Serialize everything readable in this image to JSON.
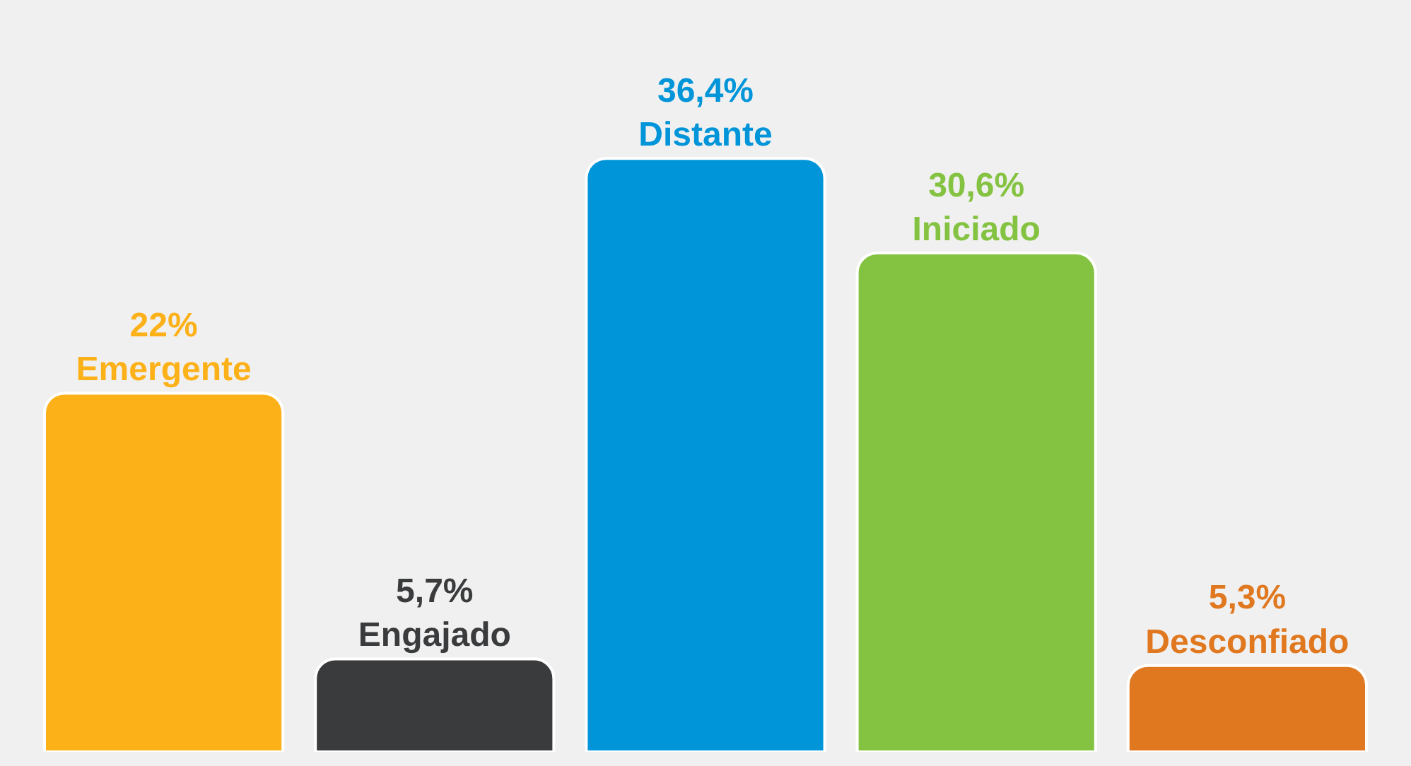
{
  "chart_data": {
    "type": "bar",
    "categories": [
      "Emergente",
      "Engajado",
      "Distante",
      "Iniciado",
      "Desconfiado"
    ],
    "values": [
      22,
      5.7,
      36.4,
      30.6,
      5.3
    ],
    "value_labels": [
      "22%",
      "5,7%",
      "36,4%",
      "30,6%",
      "5,3%"
    ],
    "colors": [
      "#fdb119",
      "#3a3b3d",
      "#0095d9",
      "#84c341",
      "#e07820"
    ],
    "tick_labels": false,
    "grid": false,
    "legend": false
  }
}
